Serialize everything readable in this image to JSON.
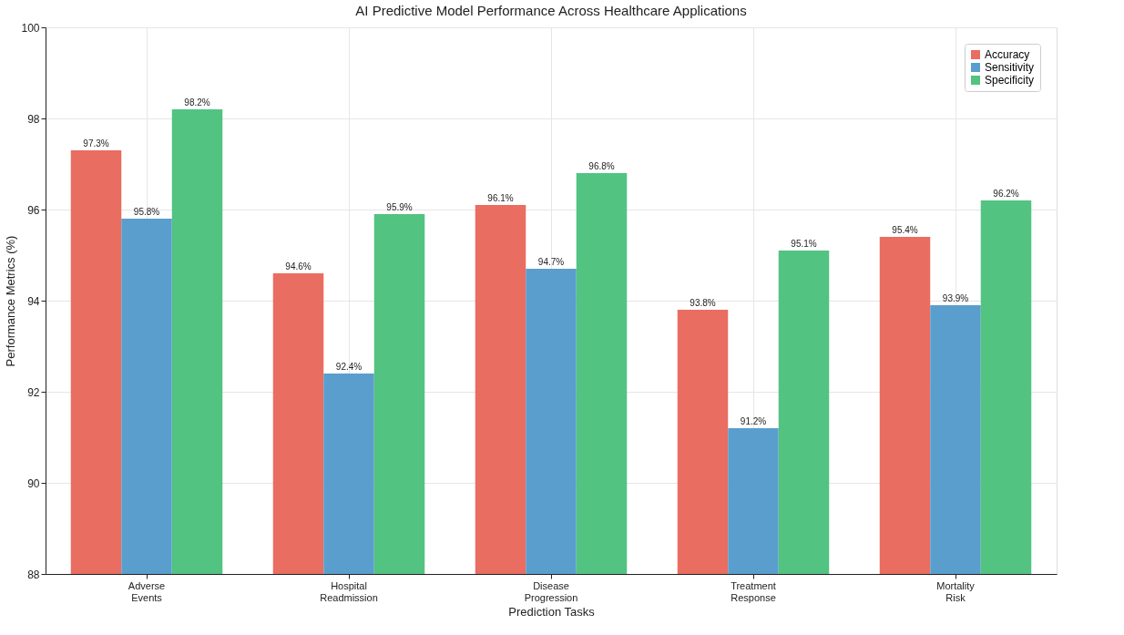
{
  "chart_data": {
    "type": "bar",
    "title": "AI Predictive Model Performance Across Healthcare Applications",
    "xlabel": "Prediction Tasks",
    "ylabel": "Performance Metrics (%)",
    "categories": [
      "Adverse Events",
      "Hospital Readmission",
      "Disease Progression",
      "Treatment Response",
      "Mortality Risk"
    ],
    "series": [
      {
        "name": "Accuracy",
        "color": "#e96d60",
        "values": [
          97.3,
          94.6,
          96.1,
          93.8,
          95.4
        ],
        "value_labels": [
          "97.3%",
          "94.6%",
          "96.1%",
          "93.8%",
          "95.4%"
        ]
      },
      {
        "name": "Sensitivity",
        "color": "#5a9ecd",
        "values": [
          95.8,
          92.4,
          94.7,
          91.2,
          93.9
        ],
        "value_labels": [
          "95.8%",
          "92.4%",
          "94.7%",
          "91.2%",
          "93.9%"
        ]
      },
      {
        "name": "Specificity",
        "color": "#52c381",
        "values": [
          98.2,
          95.9,
          96.8,
          95.1,
          96.2
        ],
        "value_labels": [
          "98.2%",
          "95.9%",
          "96.8%",
          "95.1%",
          "96.2%"
        ]
      }
    ],
    "ylim": [
      88,
      100
    ],
    "yticks": [
      88,
      90,
      92,
      94,
      96,
      98,
      100
    ],
    "grid": true,
    "legend": "top right"
  }
}
